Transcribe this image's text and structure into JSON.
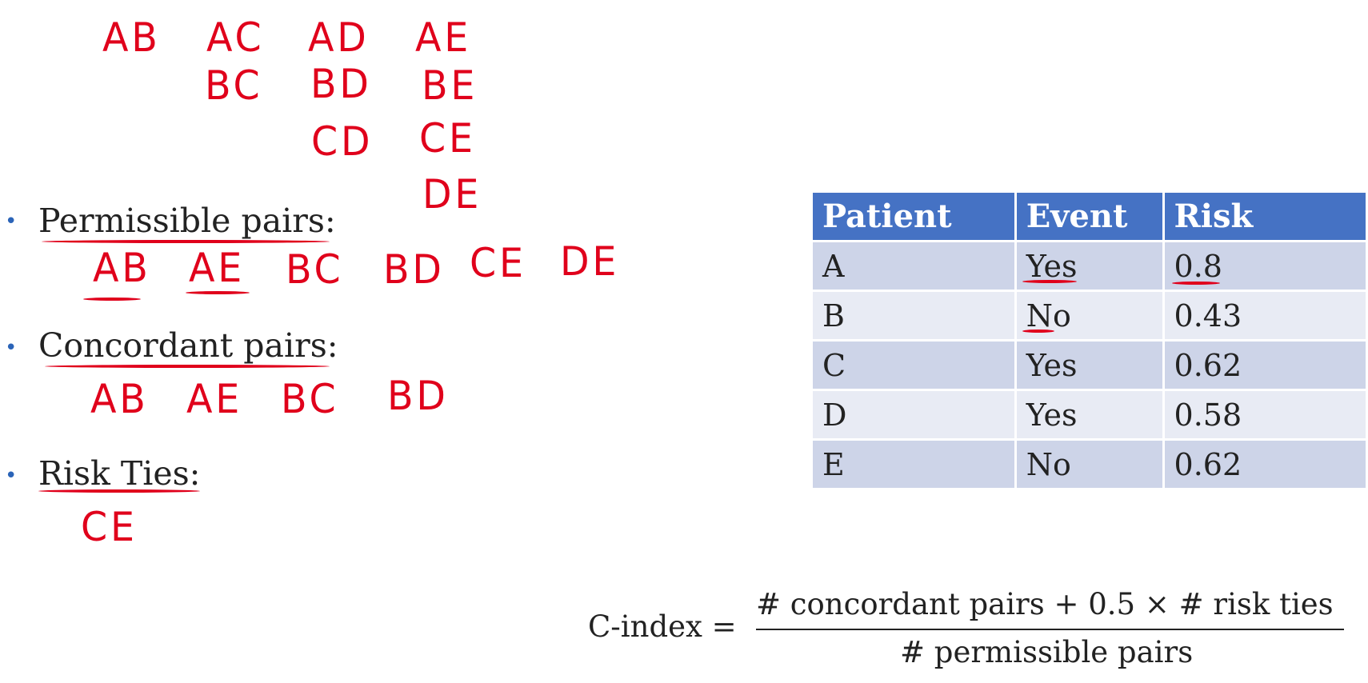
{
  "handwritten": {
    "pairs_grid": {
      "row1": [
        "AB",
        "AC",
        "AD",
        "AE"
      ],
      "row2": [
        "BC",
        "BD",
        "BE"
      ],
      "row3": [
        "CD",
        "CE"
      ],
      "row4": [
        "DE"
      ]
    },
    "permissible": [
      "AB",
      "AE",
      "BC",
      "BD",
      "CE",
      "DE"
    ],
    "concordant": [
      "AB",
      "AE",
      "BC",
      "BD"
    ],
    "ties": [
      "CE"
    ]
  },
  "bullets": {
    "permissible_label": "Permissible pairs:",
    "concordant_label": "Concordant pairs:",
    "ties_label": "Risk Ties:"
  },
  "table": {
    "headers": [
      "Patient",
      "Event",
      "Risk"
    ],
    "rows": [
      [
        "A",
        "Yes",
        "0.8"
      ],
      [
        "B",
        "No",
        "0.43"
      ],
      [
        "C",
        "Yes",
        "0.62"
      ],
      [
        "D",
        "Yes",
        "0.58"
      ],
      [
        "E",
        "No",
        "0.62"
      ]
    ]
  },
  "formula": {
    "lhs": "C-index =",
    "numerator": "# concordant pairs + 0.5 × # risk ties",
    "denominator": "# permissible pairs"
  },
  "colors": {
    "ink": "#e0001b",
    "header_bg": "#4572c4",
    "row_dark": "#cdd4e8",
    "row_light": "#e8ebf4",
    "bullet": "#2b64b8"
  }
}
